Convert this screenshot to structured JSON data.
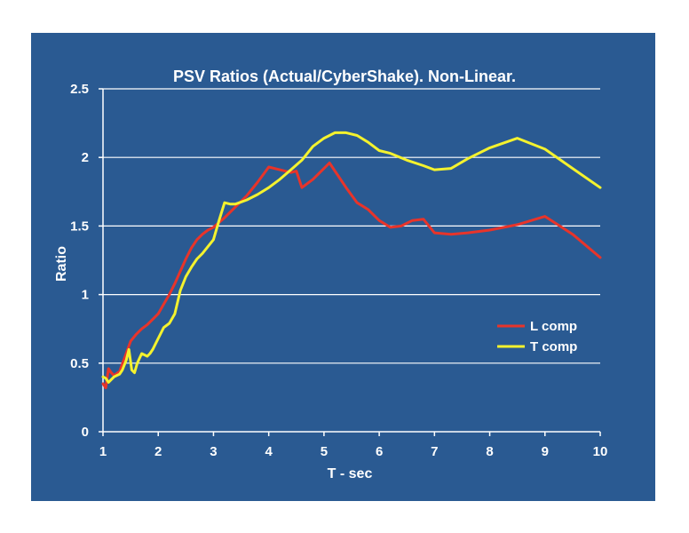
{
  "colors": {
    "background": "#2A5A92",
    "gridline": "#FFFFFF",
    "l_comp": "#E8342A",
    "t_comp": "#F4F22E"
  },
  "chart_data": {
    "type": "line",
    "title": "PSV Ratios (Actual/CyberShake). Non-Linear.",
    "xlabel": "T - sec",
    "ylabel": "Ratio",
    "xlim": [
      1,
      10
    ],
    "ylim": [
      0,
      2.5
    ],
    "xticks": [
      "1",
      "2",
      "3",
      "4",
      "5",
      "6",
      "7",
      "8",
      "9",
      "10"
    ],
    "yticks": [
      "0",
      "0.5",
      "1",
      "1.5",
      "2",
      "2.5"
    ],
    "grid": true,
    "legend_position": "right",
    "series": [
      {
        "name": "L comp",
        "color": "#E8342A",
        "x": [
          1.0,
          1.05,
          1.1,
          1.15,
          1.2,
          1.3,
          1.4,
          1.5,
          1.6,
          1.7,
          1.8,
          1.9,
          2.0,
          2.1,
          2.2,
          2.3,
          2.4,
          2.5,
          2.6,
          2.7,
          2.8,
          2.9,
          3.0,
          3.2,
          3.4,
          3.6,
          3.8,
          4.0,
          4.2,
          4.4,
          4.5,
          4.6,
          4.8,
          5.0,
          5.1,
          5.2,
          5.4,
          5.6,
          5.8,
          6.0,
          6.2,
          6.4,
          6.6,
          6.8,
          7.0,
          7.3,
          7.6,
          8.0,
          8.5,
          9.0,
          9.5,
          10.0
        ],
        "y": [
          0.35,
          0.32,
          0.46,
          0.43,
          0.41,
          0.44,
          0.55,
          0.66,
          0.71,
          0.75,
          0.78,
          0.82,
          0.86,
          0.93,
          1.0,
          1.08,
          1.17,
          1.26,
          1.34,
          1.4,
          1.44,
          1.47,
          1.49,
          1.56,
          1.64,
          1.72,
          1.82,
          1.93,
          1.91,
          1.89,
          1.9,
          1.78,
          1.84,
          1.92,
          1.96,
          1.9,
          1.78,
          1.67,
          1.62,
          1.54,
          1.49,
          1.5,
          1.54,
          1.55,
          1.45,
          1.44,
          1.45,
          1.47,
          1.51,
          1.57,
          1.44,
          1.27
        ]
      },
      {
        "name": "T comp",
        "color": "#F4F22E",
        "x": [
          1.0,
          1.05,
          1.1,
          1.15,
          1.2,
          1.3,
          1.35,
          1.42,
          1.47,
          1.52,
          1.57,
          1.62,
          1.7,
          1.75,
          1.8,
          1.85,
          1.9,
          2.0,
          2.1,
          2.2,
          2.3,
          2.4,
          2.5,
          2.6,
          2.7,
          2.8,
          2.9,
          3.0,
          3.1,
          3.2,
          3.3,
          3.4,
          3.6,
          3.8,
          4.0,
          4.2,
          4.4,
          4.6,
          4.8,
          5.0,
          5.2,
          5.4,
          5.6,
          5.8,
          6.0,
          6.2,
          6.5,
          6.8,
          7.0,
          7.3,
          7.6,
          8.0,
          8.5,
          9.0,
          9.5,
          10.0
        ],
        "y": [
          0.4,
          0.39,
          0.36,
          0.38,
          0.4,
          0.42,
          0.45,
          0.52,
          0.6,
          0.45,
          0.43,
          0.5,
          0.57,
          0.56,
          0.55,
          0.57,
          0.6,
          0.68,
          0.76,
          0.79,
          0.86,
          1.03,
          1.13,
          1.2,
          1.26,
          1.3,
          1.35,
          1.4,
          1.54,
          1.67,
          1.66,
          1.66,
          1.69,
          1.73,
          1.78,
          1.84,
          1.91,
          1.98,
          2.08,
          2.14,
          2.18,
          2.18,
          2.16,
          2.11,
          2.05,
          2.03,
          1.98,
          1.94,
          1.91,
          1.92,
          1.99,
          2.07,
          2.14,
          2.06,
          1.92,
          1.78
        ]
      }
    ]
  }
}
